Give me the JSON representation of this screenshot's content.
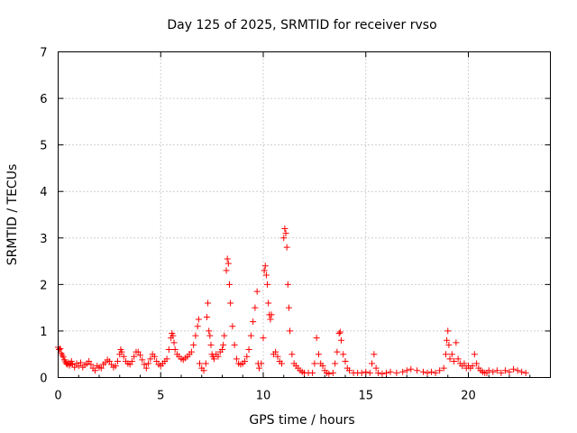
{
  "chart_data": {
    "type": "scatter",
    "title": "Day 125 of 2025, SRMTID for receiver rvso",
    "xlabel": "GPS time / hours",
    "ylabel": "SRMTID / TECUs",
    "xlim": [
      0,
      24
    ],
    "ylim": [
      0,
      7
    ],
    "xticks": [
      0,
      5,
      10,
      15,
      20
    ],
    "xtick_labels": [
      "0",
      "5",
      "10",
      "15",
      "20"
    ],
    "yticks": [
      0,
      1,
      2,
      3,
      4,
      5,
      6,
      7
    ],
    "ytick_labels": [
      "0",
      "1",
      "2",
      "3",
      "4",
      "5",
      "6",
      "7"
    ],
    "grid": true,
    "marker": "plus",
    "color": "#ff0000",
    "series": [
      {
        "name": "SRMTID",
        "points": [
          [
            0.0,
            0.65
          ],
          [
            0.05,
            0.6
          ],
          [
            0.1,
            0.62
          ],
          [
            0.15,
            0.52
          ],
          [
            0.2,
            0.48
          ],
          [
            0.25,
            0.44
          ],
          [
            0.3,
            0.38
          ],
          [
            0.35,
            0.34
          ],
          [
            0.4,
            0.3
          ],
          [
            0.45,
            0.28
          ],
          [
            0.5,
            0.32
          ],
          [
            0.55,
            0.26
          ],
          [
            0.6,
            0.3
          ],
          [
            0.65,
            0.35
          ],
          [
            0.7,
            0.28
          ],
          [
            0.8,
            0.22
          ],
          [
            0.9,
            0.3
          ],
          [
            1.0,
            0.25
          ],
          [
            1.1,
            0.32
          ],
          [
            1.2,
            0.22
          ],
          [
            1.3,
            0.27
          ],
          [
            1.4,
            0.3
          ],
          [
            1.5,
            0.35
          ],
          [
            1.6,
            0.28
          ],
          [
            1.7,
            0.2
          ],
          [
            1.8,
            0.15
          ],
          [
            1.9,
            0.25
          ],
          [
            2.0,
            0.22
          ],
          [
            2.1,
            0.2
          ],
          [
            2.2,
            0.28
          ],
          [
            2.3,
            0.32
          ],
          [
            2.4,
            0.38
          ],
          [
            2.5,
            0.35
          ],
          [
            2.6,
            0.28
          ],
          [
            2.7,
            0.22
          ],
          [
            2.8,
            0.25
          ],
          [
            2.9,
            0.35
          ],
          [
            3.0,
            0.5
          ],
          [
            3.05,
            0.6
          ],
          [
            3.1,
            0.55
          ],
          [
            3.2,
            0.45
          ],
          [
            3.3,
            0.35
          ],
          [
            3.4,
            0.3
          ],
          [
            3.5,
            0.28
          ],
          [
            3.6,
            0.35
          ],
          [
            3.7,
            0.45
          ],
          [
            3.8,
            0.55
          ],
          [
            3.9,
            0.55
          ],
          [
            4.0,
            0.48
          ],
          [
            4.1,
            0.38
          ],
          [
            4.2,
            0.28
          ],
          [
            4.3,
            0.2
          ],
          [
            4.4,
            0.3
          ],
          [
            4.5,
            0.4
          ],
          [
            4.6,
            0.5
          ],
          [
            4.7,
            0.45
          ],
          [
            4.8,
            0.35
          ],
          [
            4.9,
            0.28
          ],
          [
            5.0,
            0.25
          ],
          [
            5.1,
            0.3
          ],
          [
            5.2,
            0.35
          ],
          [
            5.3,
            0.4
          ],
          [
            5.4,
            0.6
          ],
          [
            5.5,
            0.85
          ],
          [
            5.55,
            0.95
          ],
          [
            5.6,
            0.9
          ],
          [
            5.65,
            0.75
          ],
          [
            5.7,
            0.6
          ],
          [
            5.8,
            0.5
          ],
          [
            5.9,
            0.45
          ],
          [
            6.0,
            0.4
          ],
          [
            6.1,
            0.38
          ],
          [
            6.2,
            0.42
          ],
          [
            6.3,
            0.45
          ],
          [
            6.4,
            0.5
          ],
          [
            6.5,
            0.55
          ],
          [
            6.6,
            0.7
          ],
          [
            6.7,
            0.9
          ],
          [
            6.8,
            1.1
          ],
          [
            6.85,
            1.25
          ],
          [
            6.9,
            0.3
          ],
          [
            7.0,
            0.2
          ],
          [
            7.1,
            0.15
          ],
          [
            7.2,
            0.3
          ],
          [
            7.25,
            1.3
          ],
          [
            7.3,
            1.6
          ],
          [
            7.35,
            1.0
          ],
          [
            7.4,
            0.9
          ],
          [
            7.45,
            0.7
          ],
          [
            7.5,
            0.5
          ],
          [
            7.55,
            0.45
          ],
          [
            7.6,
            0.4
          ],
          [
            7.7,
            0.5
          ],
          [
            7.8,
            0.45
          ],
          [
            7.9,
            0.55
          ],
          [
            8.0,
            0.6
          ],
          [
            8.05,
            0.7
          ],
          [
            8.1,
            0.9
          ],
          [
            8.2,
            2.3
          ],
          [
            8.25,
            2.55
          ],
          [
            8.3,
            2.45
          ],
          [
            8.35,
            2.0
          ],
          [
            8.4,
            1.6
          ],
          [
            8.5,
            1.1
          ],
          [
            8.6,
            0.7
          ],
          [
            8.7,
            0.4
          ],
          [
            8.8,
            0.3
          ],
          [
            8.9,
            0.28
          ],
          [
            9.0,
            0.3
          ],
          [
            9.1,
            0.35
          ],
          [
            9.2,
            0.45
          ],
          [
            9.3,
            0.6
          ],
          [
            9.4,
            0.9
          ],
          [
            9.5,
            1.2
          ],
          [
            9.6,
            1.5
          ],
          [
            9.7,
            1.85
          ],
          [
            9.75,
            0.3
          ],
          [
            9.8,
            0.2
          ],
          [
            9.9,
            0.3
          ],
          [
            10.0,
            0.85
          ],
          [
            10.05,
            2.3
          ],
          [
            10.1,
            2.4
          ],
          [
            10.15,
            2.2
          ],
          [
            10.2,
            2.0
          ],
          [
            10.25,
            1.6
          ],
          [
            10.3,
            1.35
          ],
          [
            10.35,
            1.25
          ],
          [
            10.4,
            1.35
          ],
          [
            10.5,
            0.5
          ],
          [
            10.6,
            0.55
          ],
          [
            10.7,
            0.45
          ],
          [
            10.8,
            0.35
          ],
          [
            10.9,
            0.3
          ],
          [
            11.0,
            3.0
          ],
          [
            11.05,
            3.2
          ],
          [
            11.1,
            3.1
          ],
          [
            11.15,
            2.8
          ],
          [
            11.2,
            2.0
          ],
          [
            11.25,
            1.5
          ],
          [
            11.3,
            1.0
          ],
          [
            11.4,
            0.5
          ],
          [
            11.5,
            0.3
          ],
          [
            11.6,
            0.25
          ],
          [
            11.7,
            0.2
          ],
          [
            11.8,
            0.15
          ],
          [
            11.9,
            0.12
          ],
          [
            12.0,
            0.1
          ],
          [
            12.2,
            0.1
          ],
          [
            12.4,
            0.1
          ],
          [
            12.5,
            0.3
          ],
          [
            12.6,
            0.85
          ],
          [
            12.7,
            0.5
          ],
          [
            12.8,
            0.3
          ],
          [
            12.9,
            0.25
          ],
          [
            13.0,
            0.15
          ],
          [
            13.1,
            0.1
          ],
          [
            13.2,
            0.08
          ],
          [
            13.4,
            0.1
          ],
          [
            13.5,
            0.3
          ],
          [
            13.6,
            0.55
          ],
          [
            13.7,
            0.95
          ],
          [
            13.75,
            0.98
          ],
          [
            13.8,
            0.8
          ],
          [
            13.9,
            0.5
          ],
          [
            14.0,
            0.35
          ],
          [
            14.1,
            0.2
          ],
          [
            14.2,
            0.15
          ],
          [
            14.4,
            0.1
          ],
          [
            14.6,
            0.1
          ],
          [
            14.8,
            0.1
          ],
          [
            15.0,
            0.12
          ],
          [
            15.2,
            0.1
          ],
          [
            15.3,
            0.3
          ],
          [
            15.4,
            0.5
          ],
          [
            15.5,
            0.2
          ],
          [
            15.6,
            0.1
          ],
          [
            15.8,
            0.08
          ],
          [
            16.0,
            0.1
          ],
          [
            16.2,
            0.12
          ],
          [
            16.5,
            0.1
          ],
          [
            16.8,
            0.12
          ],
          [
            17.0,
            0.15
          ],
          [
            17.2,
            0.18
          ],
          [
            17.5,
            0.15
          ],
          [
            17.8,
            0.12
          ],
          [
            18.0,
            0.1
          ],
          [
            18.2,
            0.12
          ],
          [
            18.4,
            0.1
          ],
          [
            18.6,
            0.15
          ],
          [
            18.8,
            0.2
          ],
          [
            18.9,
            0.5
          ],
          [
            18.95,
            0.8
          ],
          [
            19.0,
            1.0
          ],
          [
            19.05,
            0.7
          ],
          [
            19.1,
            0.4
          ],
          [
            19.2,
            0.5
          ],
          [
            19.3,
            0.35
          ],
          [
            19.4,
            0.75
          ],
          [
            19.5,
            0.4
          ],
          [
            19.6,
            0.3
          ],
          [
            19.7,
            0.25
          ],
          [
            19.8,
            0.3
          ],
          [
            19.9,
            0.2
          ],
          [
            20.0,
            0.25
          ],
          [
            20.1,
            0.2
          ],
          [
            20.2,
            0.25
          ],
          [
            20.3,
            0.5
          ],
          [
            20.4,
            0.3
          ],
          [
            20.5,
            0.2
          ],
          [
            20.6,
            0.15
          ],
          [
            20.7,
            0.12
          ],
          [
            20.8,
            0.1
          ],
          [
            20.9,
            0.1
          ],
          [
            21.0,
            0.15
          ],
          [
            21.2,
            0.12
          ],
          [
            21.4,
            0.15
          ],
          [
            21.6,
            0.1
          ],
          [
            21.8,
            0.15
          ],
          [
            22.0,
            0.12
          ],
          [
            22.2,
            0.18
          ],
          [
            22.4,
            0.15
          ],
          [
            22.6,
            0.12
          ],
          [
            22.8,
            0.1
          ]
        ]
      }
    ]
  }
}
